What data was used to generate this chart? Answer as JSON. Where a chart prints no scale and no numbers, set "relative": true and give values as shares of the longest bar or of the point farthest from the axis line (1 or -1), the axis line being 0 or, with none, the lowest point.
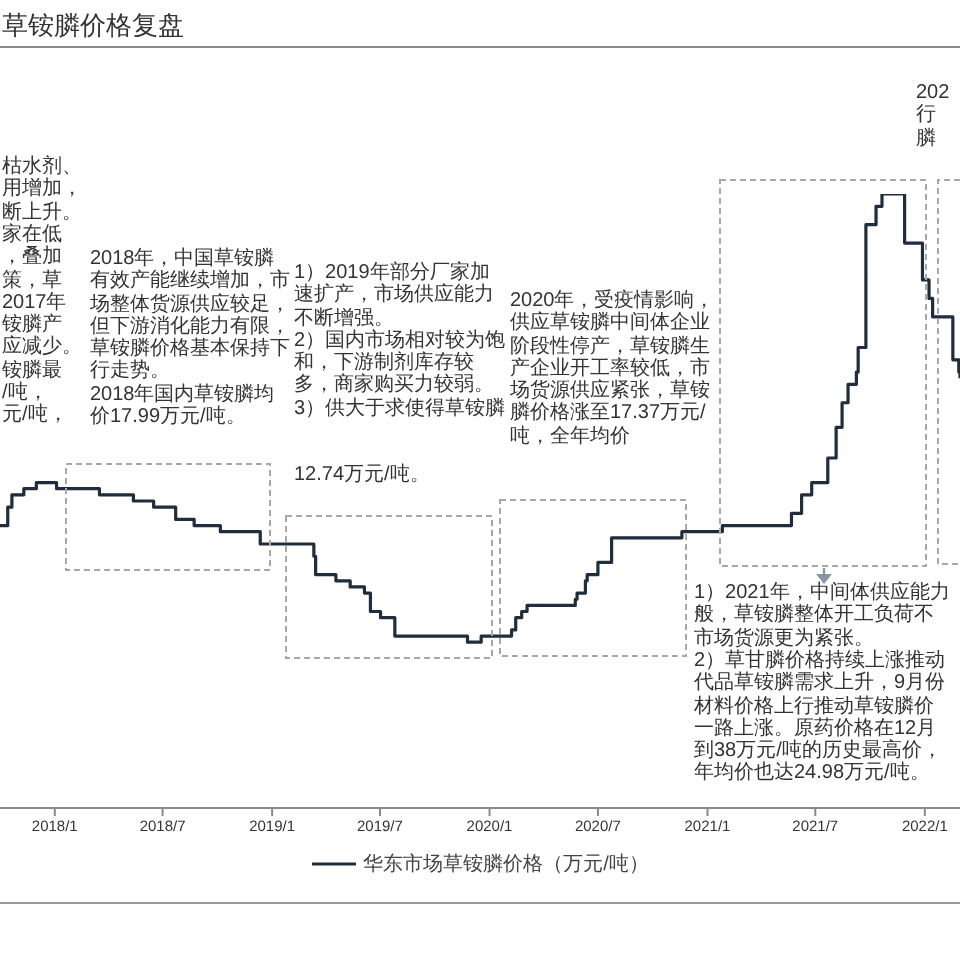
{
  "chart_data": {
    "type": "step",
    "title": "草铵膦价格复盘",
    "x": [
      "2017-10-01",
      "2017-10-14",
      "2017-10-21",
      "2017-11-10",
      "2017-12-01",
      "2018-01-04",
      "2018-03-17",
      "2018-04-20",
      "2018-05-13",
      "2018-06-16",
      "2018-07-23",
      "2018-08-23",
      "2018-10-06",
      "2018-11-26",
      "2018-12-12",
      "2019-01-26",
      "2019-03-12",
      "2019-03-15",
      "2019-04-18",
      "2019-05-12",
      "2019-06-05",
      "2019-06-15",
      "2019-07-02",
      "2019-07-26",
      "2019-10-05",
      "2019-11-25",
      "2019-12-18",
      "2020-02-07",
      "2020-02-14",
      "2020-02-24",
      "2020-03-04",
      "2020-05-24",
      "2020-05-27",
      "2020-06-10",
      "2020-06-13",
      "2020-07-01",
      "2020-07-24",
      "2020-09-13",
      "2020-11-19",
      "2021-01-26",
      "2021-04-19",
      "2021-05-22",
      "2021-06-08",
      "2021-06-25",
      "2021-07-22",
      "2021-08-05",
      "2021-08-15",
      "2021-08-25",
      "2021-09-08",
      "2021-09-11",
      "2021-09-24",
      "2021-10-11",
      "2021-10-21",
      "2021-11-28",
      "2021-12-21",
      "2021-12-28",
      "2022-01-08",
      "2022-01-14",
      "2022-02-10",
      "2022-02-17",
      "2022-02-27",
      "2022-03-01"
    ],
    "series": [
      {
        "name": "华东市场草铵膦价格（万元/吨）",
        "color": "#1f2d3d",
        "values": [
          0.46,
          0.49,
          0.51,
          0.52,
          0.53,
          0.52,
          0.51,
          0.51,
          0.5,
          0.49,
          0.47,
          0.46,
          0.45,
          0.45,
          0.43,
          0.43,
          0.41,
          0.38,
          0.37,
          0.36,
          0.35,
          0.32,
          0.31,
          0.28,
          0.28,
          0.27,
          0.28,
          0.29,
          0.31,
          0.32,
          0.33,
          0.34,
          0.35,
          0.37,
          0.38,
          0.4,
          0.44,
          0.44,
          0.45,
          0.46,
          0.46,
          0.48,
          0.51,
          0.53,
          0.57,
          0.62,
          0.66,
          0.69,
          0.71,
          0.75,
          0.95,
          0.98,
          1,
          0.92,
          0.92,
          0.86,
          0.83,
          0.8,
          0.8,
          0.73,
          0.71,
          0.7
        ]
      }
    ],
    "relative": true,
    "xlim": [
      "2017-10-01",
      "2022-03-01"
    ],
    "xticks": [
      {
        "value": "2018-01",
        "label": "2018/1"
      },
      {
        "value": "2018-07",
        "label": "2018/7"
      },
      {
        "value": "2019-01",
        "label": "2019/1"
      },
      {
        "value": "2019-07",
        "label": "2019/7"
      },
      {
        "value": "2020-01",
        "label": "2020/1"
      },
      {
        "value": "2020-07",
        "label": "2020/7"
      },
      {
        "value": "2021-01",
        "label": "2021/1"
      },
      {
        "value": "2021-07",
        "label": "2021/7"
      },
      {
        "value": "2022-01",
        "label": "2022/1"
      }
    ],
    "legend": "bottom",
    "annotations": [
      "枯水剂、",
      "用增加，",
      "断上升。",
      "家在低",
      "，叠加",
      "策，草",
      "2017年",
      "铵膦产",
      "应减少。",
      "铵膦最",
      "/吨，",
      "元/吨，",
      "2018年，中国草铵膦有效产能继续增加，市场整体货源供应较足，但下游消化能力有限，草铵膦价格基本保持下行走势。\n2018年国内草铵膦均价17.99万元/吨。",
      "1）2019年部分厂家加速扩产，市场供应能力不断增强。\n2）国内市场相对较为饱和，下游制剂库存较多，商家购买力较弱。\n3）供大于求使得草铵膦",
      "12.74万元/吨。",
      "2020年，受疫情影响，供应草铵膦中间体企业阶段性停产，草铵膦生产企业开工率较低，市场货源供应紧张，草铵膦价格涨至17.37万元/吨，全年均价",
      "202",
      "行",
      "膦",
      "1）2021年，中间体供应能力",
      "般，草铵膦整体开工负荷不",
      "市场货源更为紧张。",
      "2）草甘膦价格持续上涨推动",
      "代品草铵膦需求上升，9月份",
      "材料价格上行推动草铵膦价",
      "一路上涨。原药价格在12月",
      "到38万元/吨的历史最高价，",
      "年均价也达24.98万元/吨。"
    ]
  }
}
